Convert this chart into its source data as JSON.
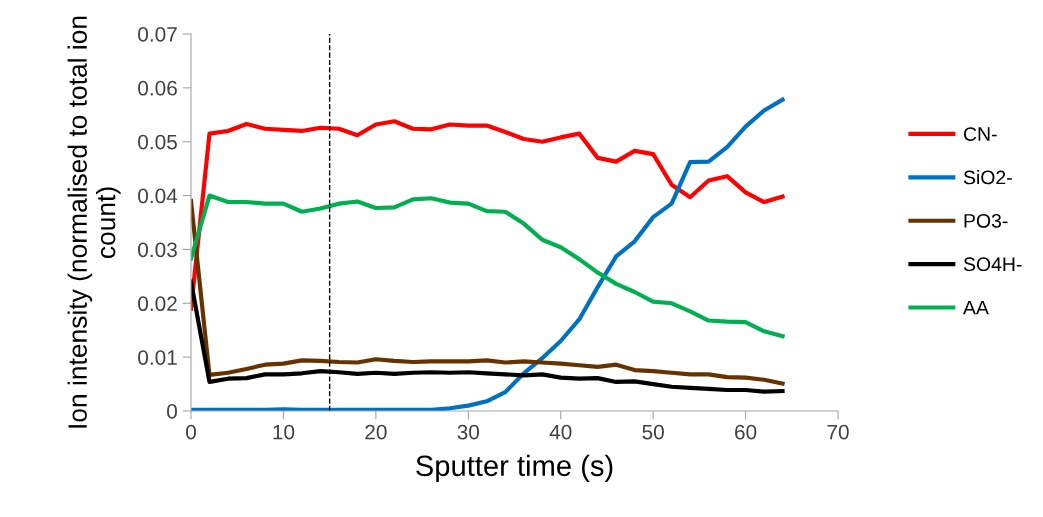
{
  "chart_data": {
    "type": "line",
    "xlabel": "Sputter time (s)",
    "ylabel": "Ion intensity (normalised to total ion count)",
    "x": [
      0,
      2,
      4,
      6,
      8,
      10,
      12,
      14,
      16,
      18,
      20,
      22,
      24,
      26,
      28,
      30,
      32,
      34,
      36,
      38,
      40,
      42,
      44,
      46,
      48,
      50,
      52,
      54,
      56,
      58,
      60,
      62,
      64
    ],
    "series": [
      {
        "name": "CN-",
        "color": "#ff0000",
        "values": [
          0.019,
          0.0515,
          0.052,
          0.0533,
          0.0524,
          0.0522,
          0.052,
          0.0526,
          0.0524,
          0.0512,
          0.0532,
          0.0538,
          0.0524,
          0.0523,
          0.0532,
          0.053,
          0.053,
          0.0518,
          0.0505,
          0.05,
          0.0508,
          0.0515,
          0.047,
          0.0463,
          0.0483,
          0.0477,
          0.042,
          0.0397,
          0.0428,
          0.0436,
          0.0406,
          0.0388,
          0.0398
        ]
      },
      {
        "name": "SiO2-",
        "color": "#0070c0",
        "values": [
          0.0002,
          0.0002,
          0.0002,
          0.0002,
          0.0002,
          0.0003,
          0.0002,
          0.0002,
          0.0002,
          0.0002,
          0.0002,
          0.0002,
          0.0002,
          0.0002,
          0.0005,
          0.001,
          0.0018,
          0.0035,
          0.007,
          0.0098,
          0.013,
          0.017,
          0.023,
          0.0287,
          0.0315,
          0.036,
          0.0385,
          0.0462,
          0.0463,
          0.049,
          0.0528,
          0.0558,
          0.0578
        ]
      },
      {
        "name": "PO3-",
        "color": "#663300",
        "values": [
          0.039,
          0.0067,
          0.0071,
          0.0078,
          0.0086,
          0.0088,
          0.0094,
          0.0093,
          0.0091,
          0.009,
          0.0096,
          0.0093,
          0.0091,
          0.0092,
          0.0092,
          0.0092,
          0.0094,
          0.009,
          0.0092,
          0.009,
          0.0088,
          0.0085,
          0.0082,
          0.0086,
          0.0076,
          0.0074,
          0.0071,
          0.0068,
          0.0068,
          0.0063,
          0.0062,
          0.0058,
          0.0051
        ]
      },
      {
        "name": "SO4H-",
        "color": "#000000",
        "values": [
          0.024,
          0.0054,
          0.006,
          0.0061,
          0.0068,
          0.0068,
          0.007,
          0.0074,
          0.0072,
          0.0069,
          0.0071,
          0.0069,
          0.0071,
          0.0072,
          0.0071,
          0.0072,
          0.007,
          0.0068,
          0.0066,
          0.0068,
          0.0062,
          0.006,
          0.0061,
          0.0054,
          0.0055,
          0.005,
          0.0045,
          0.0043,
          0.0041,
          0.0039,
          0.0039,
          0.0036,
          0.0037
        ]
      },
      {
        "name": "AA",
        "color": "#00b050",
        "values": [
          0.0283,
          0.04,
          0.0388,
          0.0388,
          0.0385,
          0.0385,
          0.037,
          0.0376,
          0.0385,
          0.0389,
          0.0377,
          0.0378,
          0.0393,
          0.0395,
          0.0387,
          0.0385,
          0.0371,
          0.037,
          0.0348,
          0.0318,
          0.0304,
          0.0282,
          0.0257,
          0.0236,
          0.0221,
          0.0203,
          0.02,
          0.0185,
          0.0168,
          0.0166,
          0.0165,
          0.0148,
          0.0139
        ]
      }
    ],
    "xlim": [
      0,
      70
    ],
    "xticks": [
      0,
      10,
      20,
      30,
      40,
      50,
      60,
      70
    ],
    "ylim": [
      0,
      0.07
    ],
    "yticks": [
      {
        "value": 0,
        "label": "0"
      },
      0.01,
      0.02,
      0.03,
      0.04,
      0.05,
      0.06,
      0.07
    ],
    "ref_lines": [
      {
        "axis": "x",
        "value": 15,
        "color": "#000000",
        "line_style": "dashed"
      }
    ],
    "legend": "right",
    "grid": false,
    "marker": "none",
    "line_style": "solid"
  }
}
